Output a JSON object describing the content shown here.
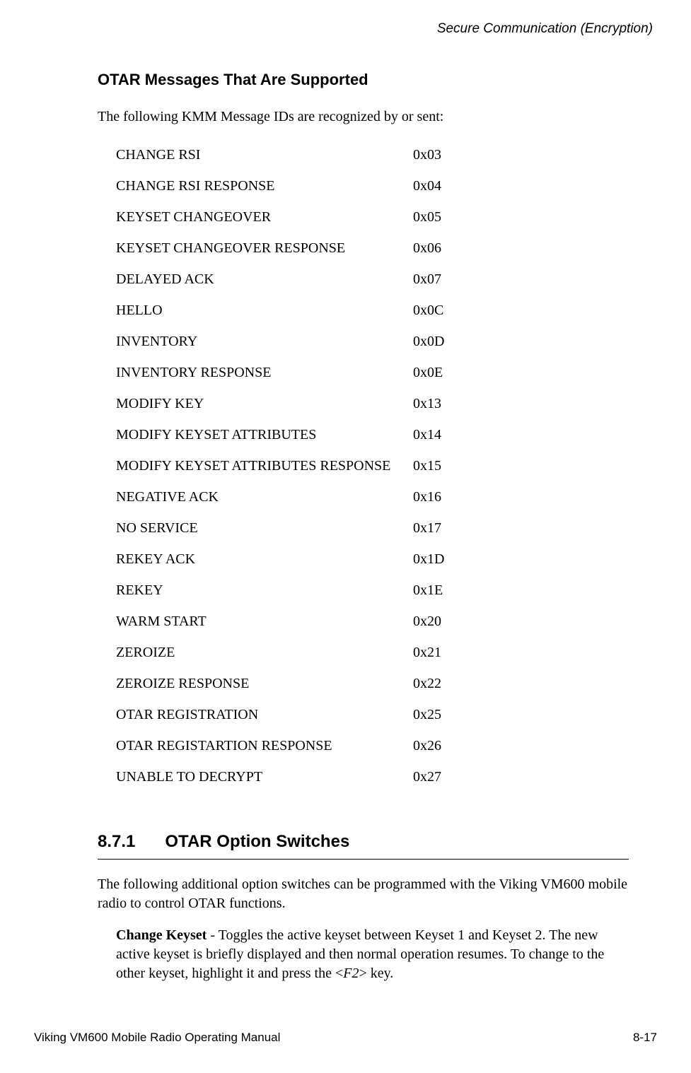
{
  "header": {
    "chapter_title": "Secure Communication (Encryption)"
  },
  "section1": {
    "heading": "OTAR Messages That Are Supported",
    "intro": "The following KMM Message IDs are recognized by or sent:",
    "messages": [
      {
        "name": "CHANGE RSI",
        "code": "0x03"
      },
      {
        "name": "CHANGE RSI RESPONSE",
        "code": "0x04"
      },
      {
        "name": "KEYSET CHANGEOVER",
        "code": "0x05"
      },
      {
        "name": "KEYSET CHANGEOVER RESPONSE",
        "code": "0x06"
      },
      {
        "name": "DELAYED ACK",
        "code": "0x07"
      },
      {
        "name": "HELLO",
        "code": "0x0C"
      },
      {
        "name": "INVENTORY",
        "code": "0x0D"
      },
      {
        "name": "INVENTORY RESPONSE",
        "code": "0x0E"
      },
      {
        "name": "MODIFY KEY",
        "code": "0x13"
      },
      {
        "name": "MODIFY KEYSET ATTRIBUTES",
        "code": "0x14"
      },
      {
        "name": "MODIFY KEYSET ATTRIBUTES RESPONSE",
        "code": "0x15"
      },
      {
        "name": "NEGATIVE ACK",
        "code": "0x16"
      },
      {
        "name": "NO SERVICE",
        "code": "0x17"
      },
      {
        "name": "REKEY ACK",
        "code": "0x1D"
      },
      {
        "name": "REKEY",
        "code": "0x1E"
      },
      {
        "name": "WARM START",
        "code": "0x20"
      },
      {
        "name": "ZEROIZE",
        "code": "0x21"
      },
      {
        "name": "ZEROIZE RESPONSE",
        "code": "0x22"
      },
      {
        "name": "OTAR REGISTRATION",
        "code": "0x25"
      },
      {
        "name": "OTAR REGISTARTION RESPONSE",
        "code": "0x26"
      },
      {
        "name": "UNABLE TO DECRYPT",
        "code": "0x27"
      }
    ]
  },
  "section2": {
    "number": "8.7.1",
    "title": "OTAR Option Switches",
    "intro": "The following additional option switches can be programmed with the Viking VM600 mobile radio to control OTAR functions.",
    "option": {
      "term": "Change Keyset",
      "sep": " - ",
      "desc_pre": "Toggles the active keyset between Keyset 1 and Keyset 2. The new active keyset is briefly displayed and then normal operation resumes. To change to the other keyset, highlight it and press the <",
      "key": "F2",
      "desc_post": "> key."
    }
  },
  "footer": {
    "left": "Viking VM600 Mobile Radio Operating Manual",
    "right": "8-17"
  }
}
